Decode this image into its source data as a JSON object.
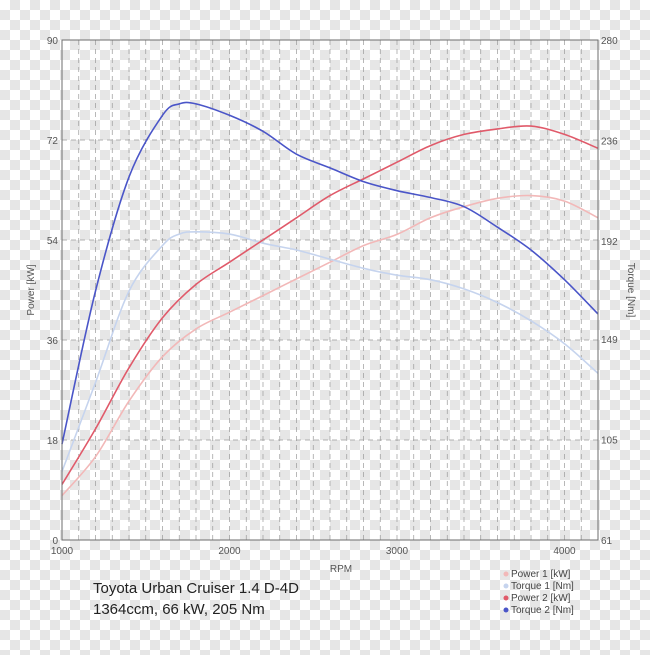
{
  "chart_data": {
    "type": "line",
    "caption": [
      "Toyota Urban Cruiser 1.4 D-4D",
      "1364ccm, 66 kW, 205 Nm"
    ],
    "xlabel": "RPM",
    "ylabel_left": "Power [kW]",
    "ylabel_right": "Torque [Nm]",
    "xlim": [
      1000,
      4200
    ],
    "x_ticks": [
      1000,
      2000,
      3000,
      4000
    ],
    "ylim_left": [
      0,
      90
    ],
    "y_ticks_left": [
      0,
      18,
      36,
      54,
      72,
      90
    ],
    "ylim_right": [
      61,
      280
    ],
    "y_ticks_right": [
      61,
      105,
      149,
      192,
      236,
      280
    ],
    "grid": true,
    "legend_position": "bottom-right",
    "series": [
      {
        "name": "Power 1 [kW]",
        "axis": "left",
        "color": "#f2b8b8",
        "x": [
          1000,
          1200,
          1400,
          1600,
          1800,
          2000,
          2200,
          2400,
          2600,
          2800,
          3000,
          3200,
          3400,
          3600,
          3800,
          4000,
          4200
        ],
        "y": [
          8,
          15,
          25,
          33,
          38,
          41,
          44,
          47,
          50,
          53,
          55,
          58,
          60,
          61.5,
          62,
          61,
          58
        ]
      },
      {
        "name": "Torque 1 [Nm]",
        "axis": "right",
        "color": "#c6d4ee",
        "x": [
          1000,
          1200,
          1400,
          1600,
          1700,
          1800,
          2000,
          2200,
          2400,
          2600,
          2800,
          3000,
          3200,
          3400,
          3600,
          3800,
          4000,
          4200
        ],
        "y": [
          91,
          130,
          170,
          190,
          195,
          196,
          195,
          191,
          188,
          184,
          180,
          177,
          175,
          171,
          165,
          157,
          147,
          134
        ]
      },
      {
        "name": "Power 2 [kW]",
        "axis": "left",
        "color": "#e05a6a",
        "x": [
          1000,
          1200,
          1400,
          1600,
          1800,
          2000,
          2200,
          2400,
          2600,
          2800,
          3000,
          3200,
          3400,
          3600,
          3800,
          4000,
          4200
        ],
        "y": [
          10,
          20,
          31,
          40,
          46,
          50,
          54,
          58,
          62,
          65,
          68,
          71,
          73,
          74,
          74.5,
          73,
          70.5
        ]
      },
      {
        "name": "Torque 2 [Nm]",
        "axis": "right",
        "color": "#4a55c8",
        "x": [
          1000,
          1200,
          1400,
          1600,
          1700,
          1800,
          2000,
          2200,
          2400,
          2600,
          2800,
          3000,
          3200,
          3400,
          3600,
          3800,
          4000,
          4200
        ],
        "y": [
          103,
          170,
          220,
          247,
          252,
          252,
          247,
          240,
          230,
          224,
          218,
          214,
          211,
          207,
          198,
          188,
          175,
          160
        ]
      }
    ]
  }
}
